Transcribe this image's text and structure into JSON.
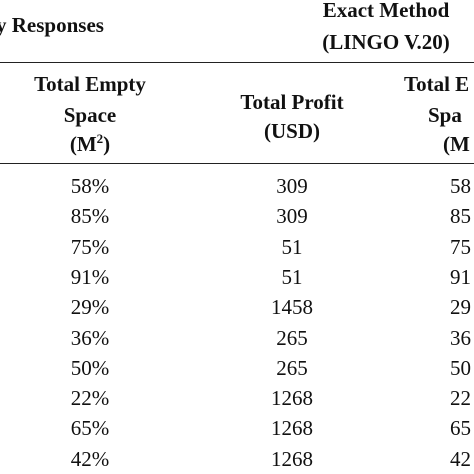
{
  "header_group": {
    "left": "y Responses",
    "right_line1": "Exact Method",
    "right_line2": "(LINGO V.20)"
  },
  "columns": [
    {
      "line1": "Total Empty",
      "line2": "Space",
      "unit": "(M",
      "unit_sup": "2",
      "unit_end": ")"
    },
    {
      "line1": "Total Profit",
      "line2": "(USD)"
    },
    {
      "line1": "Total E",
      "line2": "Spa",
      "unit": "(M"
    }
  ],
  "table": {
    "rows": [
      [
        "58%",
        "309",
        "58"
      ],
      [
        "85%",
        "309",
        "85"
      ],
      [
        "75%",
        "51",
        "75"
      ],
      [
        "91%",
        "51",
        "91"
      ],
      [
        "29%",
        "1458",
        "29"
      ],
      [
        "36%",
        "265",
        "36"
      ],
      [
        "50%",
        "265",
        "50"
      ],
      [
        "22%",
        "1268",
        "22"
      ],
      [
        "65%",
        "1268",
        "65"
      ],
      [
        "42%",
        "1268",
        "42"
      ]
    ]
  }
}
